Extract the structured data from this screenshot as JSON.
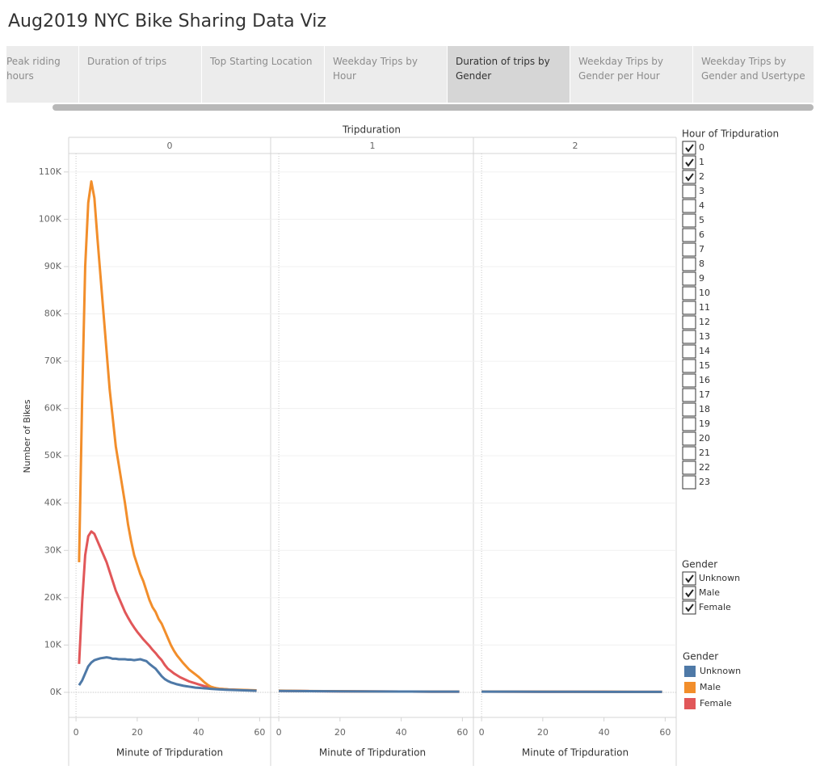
{
  "header": {
    "title": "Aug2019 NYC Bike Sharing Data Viz"
  },
  "tabs": [
    {
      "label": "Peak riding hours",
      "active": false
    },
    {
      "label": "Duration of trips",
      "active": false
    },
    {
      "label": "Top Starting Location",
      "active": false
    },
    {
      "label": "Weekday Trips by Hour",
      "active": false
    },
    {
      "label": "Duration of trips by Gender",
      "active": true
    },
    {
      "label": "Weekday Trips by Gender per Hour",
      "active": false
    },
    {
      "label": "Weekday Trips by Gender and Usertype",
      "active": false
    }
  ],
  "filters": [
    {
      "title": "Hour of Tripduration",
      "items": [
        {
          "label": "0",
          "checked": true
        },
        {
          "label": "1",
          "checked": true
        },
        {
          "label": "2",
          "checked": true
        },
        {
          "label": "3",
          "checked": false
        },
        {
          "label": "4",
          "checked": false
        },
        {
          "label": "5",
          "checked": false
        },
        {
          "label": "6",
          "checked": false
        },
        {
          "label": "7",
          "checked": false
        },
        {
          "label": "8",
          "checked": false
        },
        {
          "label": "9",
          "checked": false
        },
        {
          "label": "10",
          "checked": false
        },
        {
          "label": "11",
          "checked": false
        },
        {
          "label": "12",
          "checked": false
        },
        {
          "label": "13",
          "checked": false
        },
        {
          "label": "14",
          "checked": false
        },
        {
          "label": "15",
          "checked": false
        },
        {
          "label": "16",
          "checked": false
        },
        {
          "label": "17",
          "checked": false
        },
        {
          "label": "18",
          "checked": false
        },
        {
          "label": "19",
          "checked": false
        },
        {
          "label": "20",
          "checked": false
        },
        {
          "label": "21",
          "checked": false
        },
        {
          "label": "22",
          "checked": false
        },
        {
          "label": "23",
          "checked": false
        }
      ]
    },
    {
      "title": "Gender",
      "items": [
        {
          "label": "Unknown",
          "checked": true
        },
        {
          "label": "Male",
          "checked": true
        },
        {
          "label": "Female",
          "checked": true
        }
      ]
    }
  ],
  "chart_data": {
    "type": "line",
    "title": "Tripduration",
    "y_label": "Number of Bikes",
    "x_label": "Minute of Tripduration",
    "legend_title": "Gender",
    "grid": true,
    "xlim": [
      -2.4,
      63.6
    ],
    "xticks": [
      0,
      20,
      40,
      60
    ],
    "ylim": [
      -5300,
      113900
    ],
    "yticks": [
      {
        "value": 0,
        "label": "0K"
      },
      {
        "value": 10000,
        "label": "10K"
      },
      {
        "value": 20000,
        "label": "20K"
      },
      {
        "value": 30000,
        "label": "30K"
      },
      {
        "value": 40000,
        "label": "40K"
      },
      {
        "value": 50000,
        "label": "50K"
      },
      {
        "value": 60000,
        "label": "60K"
      },
      {
        "value": 70000,
        "label": "70K"
      },
      {
        "value": 80000,
        "label": "80K"
      },
      {
        "value": 90000,
        "label": "90K"
      },
      {
        "value": 100000,
        "label": "100K"
      },
      {
        "value": 110000,
        "label": "110K"
      }
    ],
    "series": [
      {
        "name": "Unknown",
        "color": "#4e79a7"
      },
      {
        "name": "Male",
        "color": "#f28e2b"
      },
      {
        "name": "Female",
        "color": "#e15759"
      }
    ],
    "panels": [
      {
        "label": "0",
        "x": [
          1,
          2,
          3,
          4,
          5,
          6,
          7,
          8,
          9,
          10,
          11,
          12,
          13,
          14,
          15,
          16,
          17,
          18,
          19,
          20,
          21,
          22,
          23,
          24,
          25,
          26,
          27,
          28,
          29,
          30,
          31,
          32,
          33,
          34,
          35,
          36,
          37,
          38,
          39,
          40,
          41,
          42,
          43,
          44,
          45,
          46,
          47,
          48,
          49,
          50,
          51,
          52,
          53,
          54,
          55,
          56,
          57,
          58,
          59
        ],
        "values": [
          [
            1500,
            2500,
            4000,
            5500,
            6300,
            6800,
            7000,
            7200,
            7300,
            7400,
            7300,
            7100,
            7100,
            7000,
            7000,
            7000,
            6900,
            6900,
            6800,
            6900,
            7000,
            6800,
            6600,
            6000,
            5500,
            5000,
            4200,
            3400,
            2800,
            2400,
            2100,
            1900,
            1700,
            1550,
            1400,
            1300,
            1200,
            1100,
            1000,
            950,
            900,
            850,
            800,
            750,
            700,
            650,
            620,
            590,
            560,
            530,
            500,
            480,
            460,
            440,
            420,
            400,
            380,
            360,
            340
          ],
          [
            27500,
            62000,
            90000,
            103500,
            108000,
            104500,
            96000,
            88000,
            80000,
            72000,
            64000,
            58000,
            52000,
            48000,
            44000,
            40000,
            35500,
            32000,
            29000,
            27000,
            25000,
            23500,
            21500,
            19500,
            18000,
            17000,
            15500,
            14500,
            13000,
            11500,
            10000,
            8800,
            7800,
            7000,
            6200,
            5500,
            4800,
            4300,
            3800,
            3300,
            2700,
            2100,
            1600,
            1200,
            1000,
            850,
            750,
            700,
            650,
            600,
            580,
            560,
            540,
            520,
            500,
            480,
            460,
            440,
            420
          ],
          [
            6000,
            19000,
            29000,
            33000,
            34000,
            33500,
            32000,
            30500,
            29000,
            27500,
            25500,
            23500,
            21500,
            20000,
            18500,
            17000,
            15800,
            14700,
            13700,
            12800,
            12000,
            11200,
            10500,
            9800,
            9000,
            8300,
            7500,
            6800,
            5800,
            5000,
            4500,
            4000,
            3600,
            3200,
            2900,
            2600,
            2300,
            2100,
            1900,
            1700,
            1500,
            1300,
            1150,
            1000,
            900,
            820,
            750,
            700,
            650,
            600,
            570,
            540,
            510,
            480,
            460,
            440,
            420,
            400,
            380
          ]
        ]
      },
      {
        "label": "1",
        "x": [
          0,
          10,
          20,
          30,
          40,
          50,
          59
        ],
        "values": [
          [
            300,
            250,
            200,
            180,
            160,
            150,
            140
          ],
          [
            350,
            280,
            220,
            190,
            170,
            150,
            140
          ],
          [
            320,
            260,
            210,
            180,
            160,
            150,
            140
          ]
        ]
      },
      {
        "label": "2",
        "x": [
          0,
          10,
          20,
          30,
          40,
          50,
          59
        ],
        "values": [
          [
            150,
            140,
            130,
            120,
            110,
            105,
            100
          ],
          [
            160,
            150,
            135,
            125,
            115,
            108,
            100
          ],
          [
            155,
            145,
            130,
            120,
            112,
            106,
            100
          ]
        ]
      }
    ]
  }
}
